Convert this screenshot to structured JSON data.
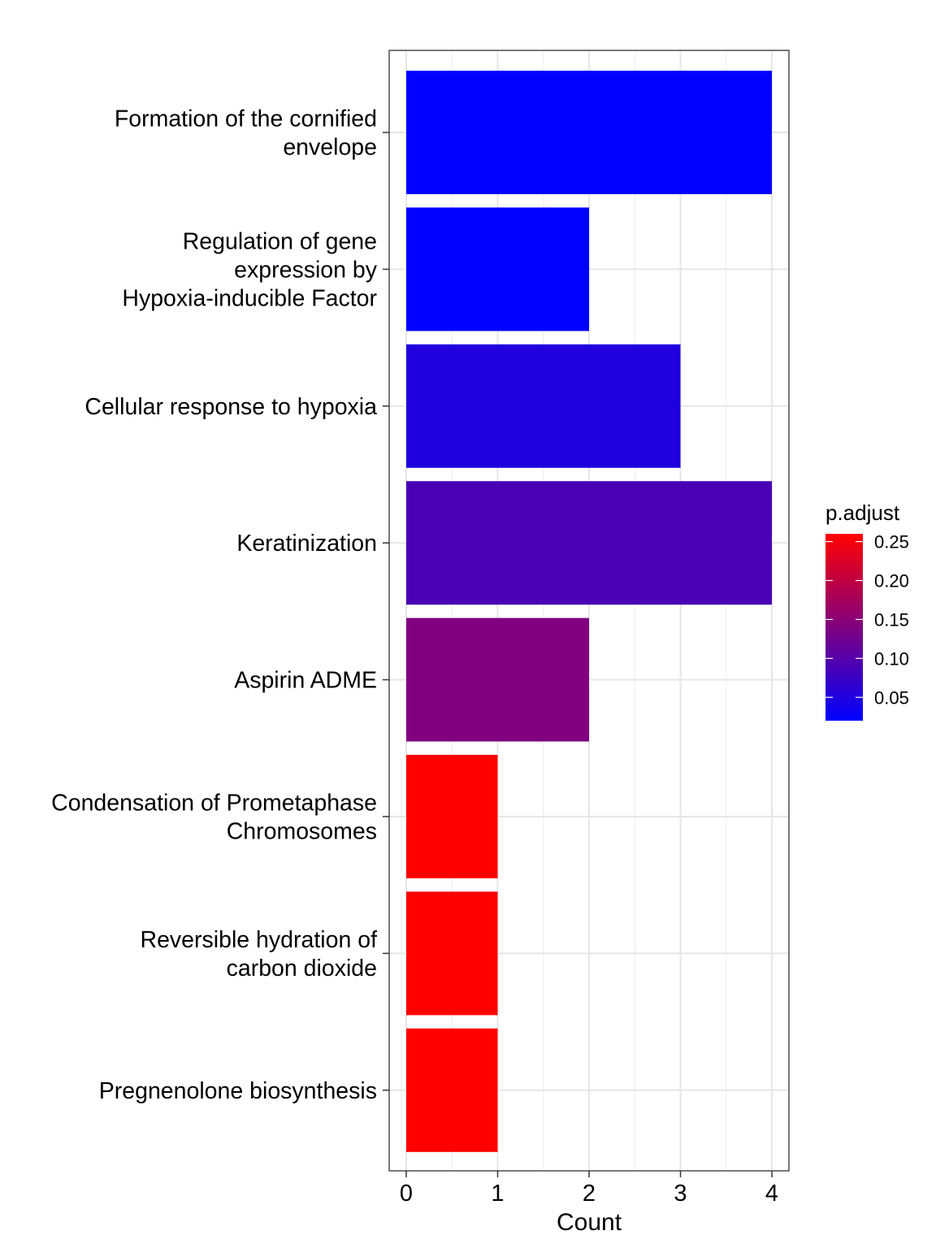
{
  "chart_data": {
    "type": "bar",
    "orientation": "horizontal",
    "xlabel": "Count",
    "ylabel": "",
    "title": "",
    "xlim": [
      0,
      4
    ],
    "xticks": [
      "0",
      "1",
      "2",
      "3",
      "4"
    ],
    "categories": [
      [
        "Formation of the cornified",
        "envelope"
      ],
      [
        "Regulation of gene",
        "expression by",
        "Hypoxia-inducible Factor"
      ],
      [
        "Cellular response to hypoxia"
      ],
      [
        "Keratinization"
      ],
      [
        "Aspirin ADME"
      ],
      [
        "Condensation of Prometaphase",
        "Chromosomes"
      ],
      [
        "Reversible hydration of",
        "carbon dioxide"
      ],
      [
        "Pregnenolone biosynthesis"
      ]
    ],
    "values": [
      4,
      2,
      3,
      4,
      2,
      1,
      1,
      1
    ],
    "p_adjust": [
      0.02,
      0.02,
      0.05,
      0.09,
      0.14,
      0.26,
      0.26,
      0.26
    ],
    "grid": true,
    "legend": {
      "title": "p.adjust",
      "position": "right",
      "ticks": [
        "0.25",
        "0.20",
        "0.15",
        "0.10",
        "0.05"
      ],
      "tick_values": [
        0.25,
        0.2,
        0.15,
        0.1,
        0.05
      ],
      "range": [
        0.02,
        0.26
      ],
      "low_color": "#0000ff",
      "high_color": "#ff0000"
    }
  }
}
